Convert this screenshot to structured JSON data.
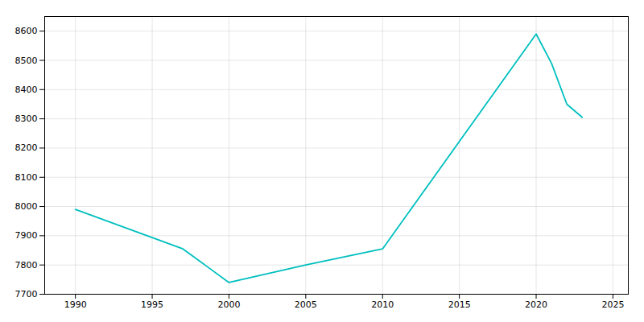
{
  "chart_data": {
    "type": "line",
    "x": [
      1990,
      1997,
      2000,
      2005,
      2010,
      2020,
      2021,
      2022,
      2023
    ],
    "values": [
      7990,
      7855,
      7740,
      7800,
      7855,
      8590,
      8490,
      8350,
      8305
    ],
    "color": "#00BFBF",
    "xlim": [
      1988,
      2026
    ],
    "ylim": [
      7700,
      8650
    ],
    "xticks": [
      1990,
      1995,
      2000,
      2005,
      2010,
      2015,
      2020,
      2025
    ],
    "yticks": [
      7700,
      7800,
      7900,
      8000,
      8100,
      8200,
      8300,
      8400,
      8500,
      8600
    ],
    "grid": true
  }
}
